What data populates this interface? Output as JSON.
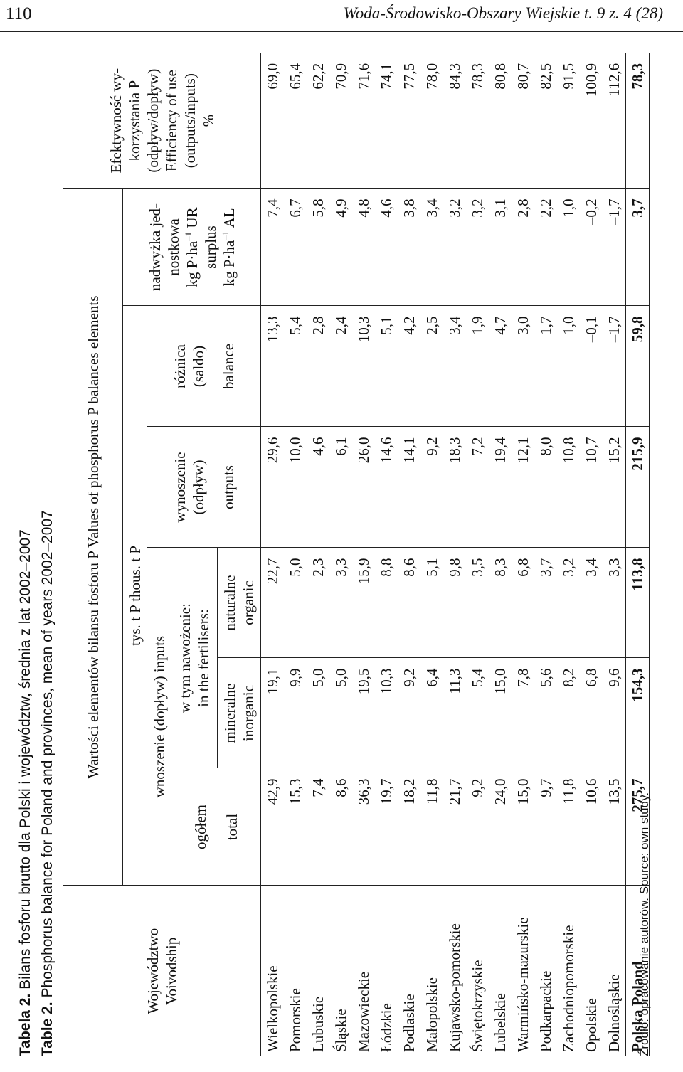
{
  "header": {
    "page_number": "110",
    "journal": "Woda-Środowisko-Obszary Wiejskie t. 9 z. 4 (28)"
  },
  "captions": {
    "pl_label": "Tabela 2.",
    "pl_text": " Bilans fosforu brutto dla Polski i województw, średnia z lat 2002–2007",
    "en_label": "Table 2.",
    "en_text": " Phosphorus balance for Poland and provinces, mean of years 2002–2007"
  },
  "table": {
    "col_voivodship_pl": "Województwo",
    "col_voivodship_en": "Voivodship",
    "values_header": "Wartości elementów bilansu fosforu P   Values of phosphorus P balances elements",
    "units_header": "tys. t P   thous. t P",
    "inputs_header": "wnoszenie (dopływ)   inputs",
    "total_pl": "ogółem",
    "total_en": "total",
    "fert_pl": "w tym nawożenie:",
    "fert_en": "in the fertilisers:",
    "mineral_pl": "mineralne",
    "mineral_en": "inorganic",
    "natural_pl": "naturalne",
    "natural_en": "organic",
    "outputs_pl1": "wynoszenie",
    "outputs_pl2": "(odpływ)",
    "outputs_en": "outputs",
    "balance_pl1": "różnica",
    "balance_pl2": "(saldo)",
    "balance_en": "balance",
    "surplus_pl1": "nadwyżka jed-",
    "surplus_pl2": "nostkowa",
    "surplus_unit_pl_pre": "kg P·ha",
    "surplus_unit_sup": "–1",
    "surplus_unit_pl_post": " UR",
    "surplus_en": "surplus",
    "surplus_unit_en_pre": "kg P·ha",
    "surplus_unit_en_post": " AL",
    "eff_pl1": "Efektywność wy-",
    "eff_pl2": "korzystania P",
    "eff_pl3": "(odpływ/dopływ)",
    "eff_en1": "Efficiency of use",
    "eff_en2": "(outputs/inputs)",
    "eff_unit": "%",
    "rows": [
      {
        "name": "Wielkopolskie",
        "total": "42,9",
        "mineral": "19,1",
        "organic": "22,7",
        "outputs": "29,6",
        "balance": "13,3",
        "surplus": "7,4",
        "efficiency": "69,0"
      },
      {
        "name": "Pomorskie",
        "total": "15,3",
        "mineral": "9,9",
        "organic": "5,0",
        "outputs": "10,0",
        "balance": "5,4",
        "surplus": "6,7",
        "efficiency": "65,4"
      },
      {
        "name": "Lubuskie",
        "total": "7,4",
        "mineral": "5,0",
        "organic": "2,3",
        "outputs": "4,6",
        "balance": "2,8",
        "surplus": "5,8",
        "efficiency": "62,2"
      },
      {
        "name": "Śląskie",
        "total": "8,6",
        "mineral": "5,0",
        "organic": "3,3",
        "outputs": "6,1",
        "balance": "2,4",
        "surplus": "4,9",
        "efficiency": "70,9"
      },
      {
        "name": "Mazowieckie",
        "total": "36,3",
        "mineral": "19,5",
        "organic": "15,9",
        "outputs": "26,0",
        "balance": "10,3",
        "surplus": "4,8",
        "efficiency": "71,6"
      },
      {
        "name": "Łódzkie",
        "total": "19,7",
        "mineral": "10,3",
        "organic": "8,8",
        "outputs": "14,6",
        "balance": "5,1",
        "surplus": "4,6",
        "efficiency": "74,1"
      },
      {
        "name": "Podlaskie",
        "total": "18,2",
        "mineral": "9,2",
        "organic": "8,6",
        "outputs": "14,1",
        "balance": "4,2",
        "surplus": "3,8",
        "efficiency": "77,5"
      },
      {
        "name": "Małopolskie",
        "total": "11,8",
        "mineral": "6,4",
        "organic": "5,1",
        "outputs": "9,2",
        "balance": "2,5",
        "surplus": "3,4",
        "efficiency": "78,0"
      },
      {
        "name": "Kujawsko-pomorskie",
        "total": "21,7",
        "mineral": "11,3",
        "organic": "9,8",
        "outputs": "18,3",
        "balance": "3,4",
        "surplus": "3,2",
        "efficiency": "84,3"
      },
      {
        "name": "Świętokrzyskie",
        "total": "9,2",
        "mineral": "5,4",
        "organic": "3,5",
        "outputs": "7,2",
        "balance": "1,9",
        "surplus": "3,2",
        "efficiency": "78,3"
      },
      {
        "name": "Lubelskie",
        "total": "24,0",
        "mineral": "15,0",
        "organic": "8,3",
        "outputs": "19,4",
        "balance": "4,7",
        "surplus": "3,1",
        "efficiency": "80,8"
      },
      {
        "name": "Warmińsko-mazurskie",
        "total": "15,0",
        "mineral": "7,8",
        "organic": "6,8",
        "outputs": "12,1",
        "balance": "3,0",
        "surplus": "2,8",
        "efficiency": "80,7"
      },
      {
        "name": "Podkarpackie",
        "total": "9,7",
        "mineral": "5,6",
        "organic": "3,7",
        "outputs": "8,0",
        "balance": "1,7",
        "surplus": "2,2",
        "efficiency": "82,5"
      },
      {
        "name": "Zachodniopomorskie",
        "total": "11,8",
        "mineral": "8,2",
        "organic": "3,2",
        "outputs": "10,8",
        "balance": "1,0",
        "surplus": "1,0",
        "efficiency": "91,5"
      },
      {
        "name": "Opolskie",
        "total": "10,6",
        "mineral": "6,8",
        "organic": "3,4",
        "outputs": "10,7",
        "balance": "–0,1",
        "surplus": "–0,2",
        "efficiency": "100,9"
      },
      {
        "name": "Dolnośląskie",
        "total": "13,5",
        "mineral": "9,6",
        "organic": "3,3",
        "outputs": "15,2",
        "balance": "–1,7",
        "surplus": "–1,7",
        "efficiency": "112,6"
      }
    ],
    "total_row": {
      "name": "Polska   Poland",
      "total": "275,7",
      "mineral": "154,3",
      "organic": "113,8",
      "outputs": "215,9",
      "balance": "59,8",
      "surplus": "3,7",
      "efficiency": "78,3"
    }
  },
  "source_note": "Źródło: opracowanie autorów.   Source: own study."
}
